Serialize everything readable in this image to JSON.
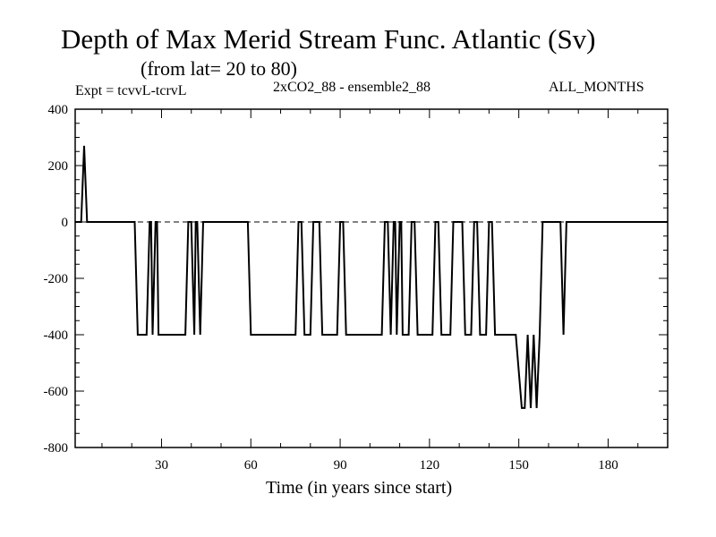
{
  "chart_data": {
    "type": "line",
    "title": "Depth of Max Merid Stream Func. Atlantic (Sv)",
    "subtitle": "(from lat= 20 to 80)",
    "annotations": {
      "left": "Expt = tcvvL-tcrvL",
      "center": "2xCO2_88 - ensemble2_88",
      "right": "ALL_MONTHS"
    },
    "xlabel": "Time (in years since start)",
    "ylabel": "",
    "xlim": [
      1,
      200
    ],
    "ylim": [
      -800,
      400
    ],
    "xticks": [
      30,
      60,
      90,
      120,
      150,
      180
    ],
    "yticks": [
      400,
      200,
      0,
      -200,
      -400,
      -600,
      -800
    ],
    "zero_line": "dashed",
    "grid": false,
    "series": [
      {
        "values": [
          [
            1,
            0
          ],
          [
            3,
            0
          ],
          [
            4,
            270
          ],
          [
            5,
            0
          ],
          [
            6,
            0
          ],
          [
            21,
            0
          ],
          [
            22,
            -400
          ],
          [
            25,
            -400
          ],
          [
            26,
            0
          ],
          [
            26.5,
            0
          ],
          [
            27,
            -400
          ],
          [
            28,
            0
          ],
          [
            28.5,
            0
          ],
          [
            29,
            -400
          ],
          [
            38,
            -400
          ],
          [
            39,
            0
          ],
          [
            40,
            0
          ],
          [
            41,
            -400
          ],
          [
            41.5,
            0
          ],
          [
            42,
            0
          ],
          [
            43,
            -400
          ],
          [
            44,
            0
          ],
          [
            59,
            0
          ],
          [
            60,
            -400
          ],
          [
            75,
            -400
          ],
          [
            76,
            0
          ],
          [
            77,
            0
          ],
          [
            78,
            -400
          ],
          [
            80,
            -400
          ],
          [
            81,
            0
          ],
          [
            83,
            0
          ],
          [
            84,
            -400
          ],
          [
            89,
            -400
          ],
          [
            90,
            0
          ],
          [
            91,
            0
          ],
          [
            92,
            -400
          ],
          [
            104,
            -400
          ],
          [
            105,
            0
          ],
          [
            106,
            0
          ],
          [
            107,
            -400
          ],
          [
            108,
            0
          ],
          [
            108.5,
            0
          ],
          [
            109,
            -400
          ],
          [
            110,
            0
          ],
          [
            110.5,
            0
          ],
          [
            111,
            -400
          ],
          [
            113,
            -400
          ],
          [
            114,
            0
          ],
          [
            115,
            0
          ],
          [
            116,
            -400
          ],
          [
            121,
            -400
          ],
          [
            122,
            0
          ],
          [
            123,
            0
          ],
          [
            124,
            -400
          ],
          [
            127,
            -400
          ],
          [
            128,
            0
          ],
          [
            131,
            0
          ],
          [
            132,
            -400
          ],
          [
            134,
            -400
          ],
          [
            135,
            0
          ],
          [
            136,
            0
          ],
          [
            137,
            -400
          ],
          [
            139,
            -400
          ],
          [
            140,
            0
          ],
          [
            141,
            0
          ],
          [
            142,
            -400
          ],
          [
            149,
            -400
          ],
          [
            151,
            -660
          ],
          [
            152,
            -660
          ],
          [
            153,
            -400
          ],
          [
            154,
            -660
          ],
          [
            155,
            -400
          ],
          [
            156,
            -660
          ],
          [
            157,
            -400
          ],
          [
            158,
            0
          ],
          [
            164,
            0
          ],
          [
            165,
            -400
          ],
          [
            166,
            0
          ],
          [
            200,
            0
          ]
        ]
      }
    ],
    "line_color": "#000000"
  }
}
